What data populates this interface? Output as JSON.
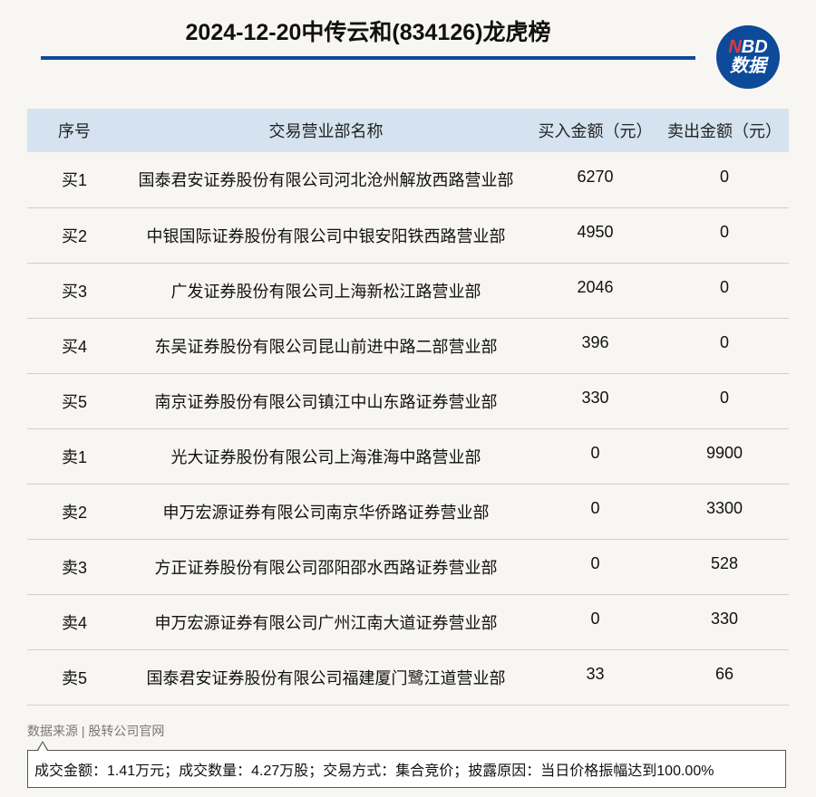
{
  "title": "2024-12-20中传云和(834126)龙虎榜",
  "logo": {
    "line1_n": "N",
    "line1_rest": "BD",
    "line2": "数据"
  },
  "table": {
    "headers": [
      "序号",
      "交易营业部名称",
      "买入金额（元）",
      "卖出金额（元）"
    ],
    "rows": [
      [
        "买1",
        "国泰君安证券股份有限公司河北沧州解放西路营业部",
        "6270",
        "0"
      ],
      [
        "买2",
        "中银国际证券股份有限公司中银安阳铁西路营业部",
        "4950",
        "0"
      ],
      [
        "买3",
        "广发证券股份有限公司上海新松江路营业部",
        "2046",
        "0"
      ],
      [
        "买4",
        "东吴证券股份有限公司昆山前进中路二部营业部",
        "396",
        "0"
      ],
      [
        "买5",
        "南京证券股份有限公司镇江中山东路证券营业部",
        "330",
        "0"
      ],
      [
        "卖1",
        "光大证券股份有限公司上海淮海中路营业部",
        "0",
        "9900"
      ],
      [
        "卖2",
        "申万宏源证券有限公司南京华侨路证券营业部",
        "0",
        "3300"
      ],
      [
        "卖3",
        "方正证券股份有限公司邵阳邵水西路证券营业部",
        "0",
        "528"
      ],
      [
        "卖4",
        "申万宏源证券有限公司广州江南大道证券营业部",
        "0",
        "330"
      ],
      [
        "卖5",
        "国泰君安证券股份有限公司福建厦门鹭江道营业部",
        "33",
        "66"
      ]
    ]
  },
  "source": "数据来源 | 股转公司官网",
  "note": "成交金额：1.41万元；成交数量：4.27万股；交易方式：集合竞价；披露原因：当日价格振幅达到100.00%",
  "colors": {
    "accent": "#0d4a9a",
    "header_bg": "#d4e3ef",
    "page_bg": "#f8f6f2"
  }
}
